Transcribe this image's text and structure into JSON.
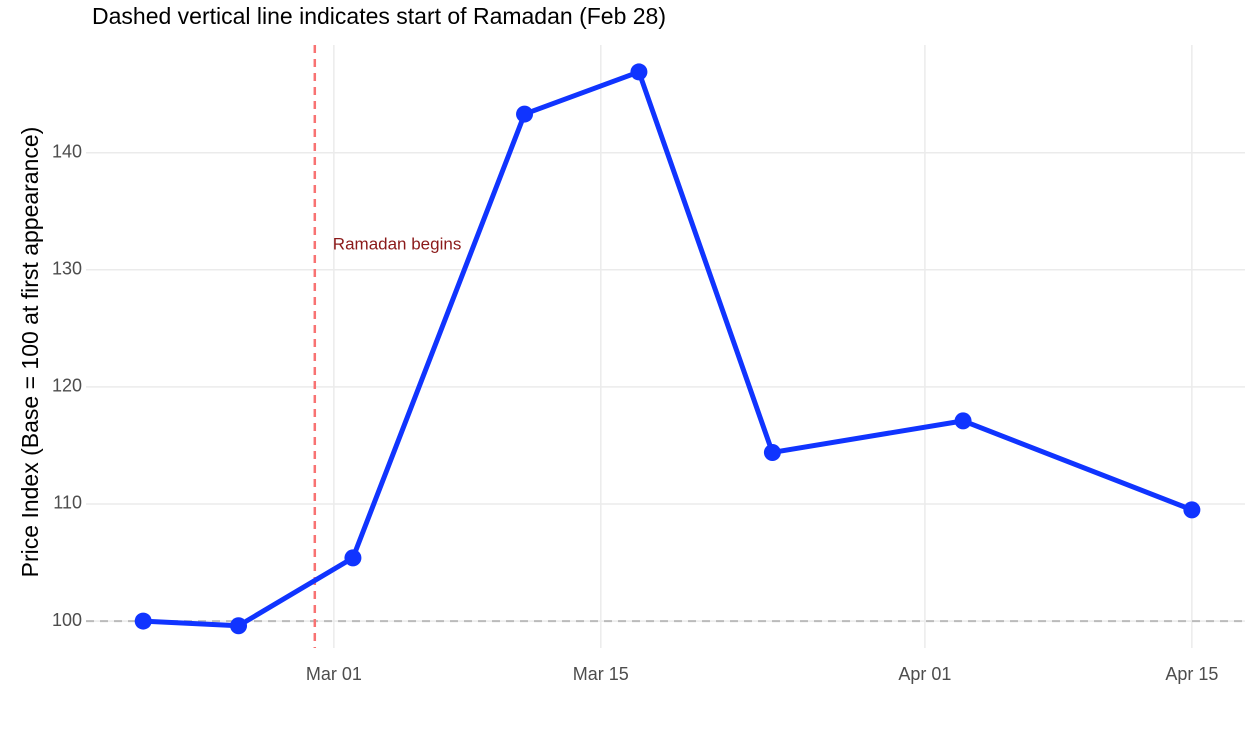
{
  "chart_data": {
    "type": "line",
    "title": "Dashed vertical line indicates start of Ramadan (Feb 28)",
    "y_label": "Price Index (Base = 100 at first appearance)",
    "x": [
      "02-19",
      "02-24",
      "03-02",
      "03-11",
      "03-17",
      "03-24",
      "04-03",
      "04-15"
    ],
    "series": [
      {
        "color": "#1034ff",
        "values": [
          100,
          99.6,
          105.4,
          143.3,
          146.9,
          114.4,
          117.1,
          109.5
        ]
      }
    ],
    "xlim": [
      "02-16",
      "04-17"
    ],
    "xticks": [
      {
        "value": "03-01",
        "label": "Mar 01"
      },
      {
        "value": "03-15",
        "label": "Mar 15"
      },
      {
        "value": "04-01",
        "label": "Apr 01"
      },
      {
        "value": "04-15",
        "label": "Apr 15"
      }
    ],
    "ylim": [
      97.7,
      149.2
    ],
    "yticks": [
      100,
      110,
      120,
      130,
      140
    ],
    "grid": true,
    "hline": {
      "value": 100,
      "color": "#bbbbbb"
    },
    "vline": {
      "value": "02-28",
      "color": "#f87272",
      "label": "Ramadan begins",
      "label_color": "#8b1a1a"
    }
  }
}
